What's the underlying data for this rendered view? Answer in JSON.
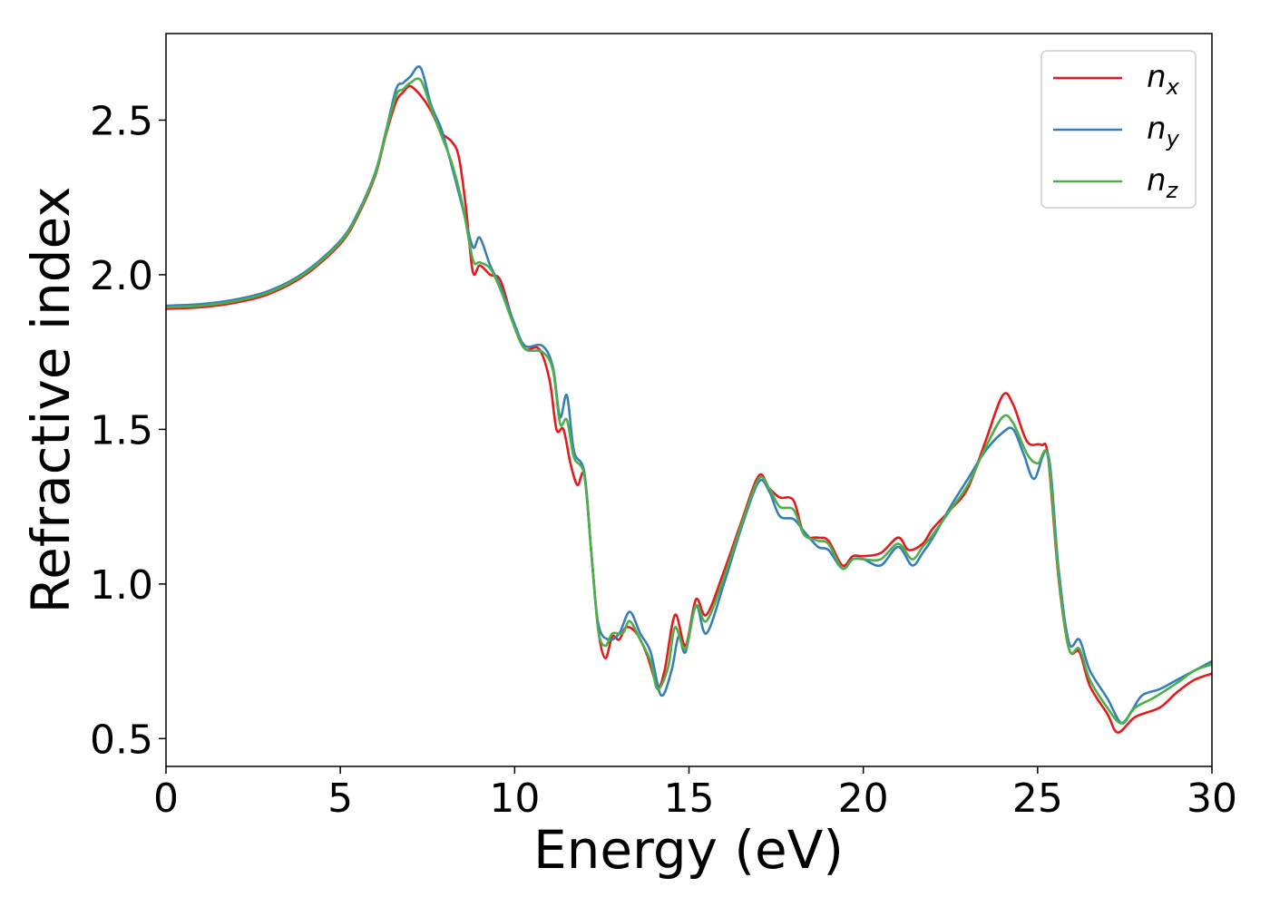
{
  "chart_data": {
    "type": "line",
    "xlabel": "Energy (eV)",
    "ylabel": "Refractive index",
    "xlim": [
      0,
      30
    ],
    "ylim": [
      0.41,
      2.78
    ],
    "xticks": [
      0,
      5,
      10,
      15,
      20,
      25,
      30
    ],
    "xtick_labels": [
      "0",
      "5",
      "10",
      "15",
      "20",
      "25",
      "30"
    ],
    "yticks": [
      0.5,
      1.0,
      1.5,
      2.0,
      2.5
    ],
    "ytick_labels": [
      "0.5",
      "1.0",
      "1.5",
      "2.0",
      "2.5"
    ],
    "grid": false,
    "legend_position": "top-right",
    "series": [
      {
        "name": "n_x",
        "base": "n",
        "sub": "x",
        "color": "#e41a1c",
        "points": [
          [
            0,
            1.89
          ],
          [
            1,
            1.895
          ],
          [
            2,
            1.91
          ],
          [
            3,
            1.94
          ],
          [
            4,
            2.0
          ],
          [
            5,
            2.1
          ],
          [
            5.5,
            2.19
          ],
          [
            6,
            2.32
          ],
          [
            6.3,
            2.45
          ],
          [
            6.6,
            2.56
          ],
          [
            6.8,
            2.59
          ],
          [
            7.0,
            2.61
          ],
          [
            7.3,
            2.58
          ],
          [
            7.6,
            2.53
          ],
          [
            7.9,
            2.46
          ],
          [
            8.2,
            2.43
          ],
          [
            8.4,
            2.38
          ],
          [
            8.6,
            2.22
          ],
          [
            8.8,
            2.01
          ],
          [
            9.0,
            2.03
          ],
          [
            9.3,
            2.0
          ],
          [
            9.6,
            1.98
          ],
          [
            10,
            1.83
          ],
          [
            10.3,
            1.76
          ],
          [
            10.7,
            1.76
          ],
          [
            11,
            1.66
          ],
          [
            11.2,
            1.5
          ],
          [
            11.4,
            1.5
          ],
          [
            11.6,
            1.39
          ],
          [
            11.8,
            1.32
          ],
          [
            12,
            1.35
          ],
          [
            12.2,
            1.1
          ],
          [
            12.4,
            0.85
          ],
          [
            12.6,
            0.76
          ],
          [
            12.8,
            0.83
          ],
          [
            13.0,
            0.82
          ],
          [
            13.2,
            0.86
          ],
          [
            13.5,
            0.84
          ],
          [
            13.8,
            0.77
          ],
          [
            14.1,
            0.67
          ],
          [
            14.3,
            0.72
          ],
          [
            14.6,
            0.9
          ],
          [
            14.9,
            0.8
          ],
          [
            15.2,
            0.95
          ],
          [
            15.5,
            0.9
          ],
          [
            16,
            1.04
          ],
          [
            16.5,
            1.2
          ],
          [
            17,
            1.35
          ],
          [
            17.3,
            1.31
          ],
          [
            17.6,
            1.28
          ],
          [
            18,
            1.27
          ],
          [
            18.3,
            1.16
          ],
          [
            18.7,
            1.15
          ],
          [
            19,
            1.14
          ],
          [
            19.4,
            1.06
          ],
          [
            19.7,
            1.09
          ],
          [
            20,
            1.09
          ],
          [
            20.5,
            1.1
          ],
          [
            21,
            1.15
          ],
          [
            21.3,
            1.11
          ],
          [
            21.7,
            1.13
          ],
          [
            22,
            1.18
          ],
          [
            22.5,
            1.24
          ],
          [
            23,
            1.31
          ],
          [
            23.5,
            1.46
          ],
          [
            24,
            1.61
          ],
          [
            24.3,
            1.58
          ],
          [
            24.7,
            1.46
          ],
          [
            25.1,
            1.45
          ],
          [
            25.3,
            1.41
          ],
          [
            25.6,
            1.02
          ],
          [
            25.9,
            0.79
          ],
          [
            26.2,
            0.78
          ],
          [
            26.5,
            0.67
          ],
          [
            27,
            0.58
          ],
          [
            27.3,
            0.52
          ],
          [
            27.8,
            0.57
          ],
          [
            28.5,
            0.6
          ],
          [
            29,
            0.65
          ],
          [
            29.5,
            0.69
          ],
          [
            30,
            0.71
          ]
        ]
      },
      {
        "name": "n_y",
        "base": "n",
        "sub": "y",
        "color": "#377eb8",
        "points": [
          [
            0,
            1.9
          ],
          [
            1,
            1.905
          ],
          [
            2,
            1.92
          ],
          [
            3,
            1.95
          ],
          [
            4,
            2.01
          ],
          [
            5,
            2.11
          ],
          [
            5.5,
            2.2
          ],
          [
            6,
            2.33
          ],
          [
            6.3,
            2.46
          ],
          [
            6.6,
            2.6
          ],
          [
            6.8,
            2.62
          ],
          [
            7.0,
            2.64
          ],
          [
            7.3,
            2.67
          ],
          [
            7.6,
            2.55
          ],
          [
            7.9,
            2.47
          ],
          [
            8.2,
            2.35
          ],
          [
            8.5,
            2.22
          ],
          [
            8.8,
            2.09
          ],
          [
            9.0,
            2.12
          ],
          [
            9.3,
            2.03
          ],
          [
            9.6,
            1.96
          ],
          [
            10,
            1.84
          ],
          [
            10.3,
            1.77
          ],
          [
            10.8,
            1.77
          ],
          [
            11.1,
            1.7
          ],
          [
            11.3,
            1.54
          ],
          [
            11.5,
            1.61
          ],
          [
            11.7,
            1.43
          ],
          [
            12,
            1.36
          ],
          [
            12.2,
            1.1
          ],
          [
            12.4,
            0.87
          ],
          [
            12.7,
            0.82
          ],
          [
            13.0,
            0.84
          ],
          [
            13.3,
            0.91
          ],
          [
            13.6,
            0.84
          ],
          [
            13.9,
            0.78
          ],
          [
            14.2,
            0.64
          ],
          [
            14.5,
            0.72
          ],
          [
            14.7,
            0.83
          ],
          [
            14.9,
            0.78
          ],
          [
            15.2,
            0.93
          ],
          [
            15.5,
            0.84
          ],
          [
            16,
            1.0
          ],
          [
            16.5,
            1.18
          ],
          [
            17,
            1.33
          ],
          [
            17.3,
            1.3
          ],
          [
            17.6,
            1.22
          ],
          [
            18,
            1.21
          ],
          [
            18.3,
            1.17
          ],
          [
            18.7,
            1.12
          ],
          [
            19,
            1.11
          ],
          [
            19.4,
            1.05
          ],
          [
            19.7,
            1.08
          ],
          [
            20,
            1.08
          ],
          [
            20.5,
            1.06
          ],
          [
            21,
            1.12
          ],
          [
            21.4,
            1.06
          ],
          [
            21.7,
            1.1
          ],
          [
            22,
            1.15
          ],
          [
            22.5,
            1.25
          ],
          [
            23,
            1.34
          ],
          [
            23.5,
            1.43
          ],
          [
            24,
            1.49
          ],
          [
            24.3,
            1.5
          ],
          [
            24.6,
            1.42
          ],
          [
            24.9,
            1.34
          ],
          [
            25.3,
            1.42
          ],
          [
            25.6,
            1.05
          ],
          [
            25.9,
            0.81
          ],
          [
            26.2,
            0.82
          ],
          [
            26.5,
            0.72
          ],
          [
            27,
            0.63
          ],
          [
            27.4,
            0.55
          ],
          [
            27.7,
            0.59
          ],
          [
            28,
            0.64
          ],
          [
            28.5,
            0.66
          ],
          [
            29,
            0.69
          ],
          [
            29.5,
            0.72
          ],
          [
            30,
            0.75
          ]
        ]
      },
      {
        "name": "n_z",
        "base": "n",
        "sub": "z",
        "color": "#4daf4a",
        "points": [
          [
            0,
            1.895
          ],
          [
            1,
            1.9
          ],
          [
            2,
            1.915
          ],
          [
            3,
            1.945
          ],
          [
            4,
            2.005
          ],
          [
            5,
            2.105
          ],
          [
            5.5,
            2.195
          ],
          [
            6,
            2.325
          ],
          [
            6.3,
            2.455
          ],
          [
            6.6,
            2.58
          ],
          [
            6.8,
            2.6
          ],
          [
            7.0,
            2.62
          ],
          [
            7.3,
            2.63
          ],
          [
            7.6,
            2.54
          ],
          [
            7.9,
            2.45
          ],
          [
            8.2,
            2.36
          ],
          [
            8.5,
            2.23
          ],
          [
            8.8,
            2.05
          ],
          [
            9.0,
            2.04
          ],
          [
            9.3,
            2.02
          ],
          [
            9.6,
            1.95
          ],
          [
            10,
            1.83
          ],
          [
            10.3,
            1.76
          ],
          [
            10.8,
            1.75
          ],
          [
            11.1,
            1.69
          ],
          [
            11.3,
            1.52
          ],
          [
            11.5,
            1.53
          ],
          [
            11.7,
            1.41
          ],
          [
            12,
            1.35
          ],
          [
            12.2,
            1.1
          ],
          [
            12.4,
            0.85
          ],
          [
            12.6,
            0.8
          ],
          [
            12.8,
            0.84
          ],
          [
            13.1,
            0.84
          ],
          [
            13.3,
            0.88
          ],
          [
            13.6,
            0.82
          ],
          [
            13.9,
            0.75
          ],
          [
            14.1,
            0.66
          ],
          [
            14.4,
            0.73
          ],
          [
            14.6,
            0.86
          ],
          [
            14.9,
            0.79
          ],
          [
            15.2,
            0.93
          ],
          [
            15.5,
            0.88
          ],
          [
            16,
            1.02
          ],
          [
            16.5,
            1.19
          ],
          [
            17,
            1.34
          ],
          [
            17.3,
            1.31
          ],
          [
            17.6,
            1.25
          ],
          [
            18,
            1.24
          ],
          [
            18.3,
            1.16
          ],
          [
            18.7,
            1.14
          ],
          [
            19,
            1.13
          ],
          [
            19.4,
            1.05
          ],
          [
            19.7,
            1.08
          ],
          [
            20,
            1.08
          ],
          [
            20.5,
            1.08
          ],
          [
            21,
            1.13
          ],
          [
            21.4,
            1.08
          ],
          [
            21.7,
            1.12
          ],
          [
            22,
            1.16
          ],
          [
            22.5,
            1.24
          ],
          [
            23,
            1.32
          ],
          [
            23.5,
            1.44
          ],
          [
            24,
            1.54
          ],
          [
            24.3,
            1.52
          ],
          [
            24.7,
            1.42
          ],
          [
            25.0,
            1.39
          ],
          [
            25.3,
            1.41
          ],
          [
            25.6,
            1.03
          ],
          [
            25.9,
            0.79
          ],
          [
            26.2,
            0.79
          ],
          [
            26.5,
            0.69
          ],
          [
            27,
            0.6
          ],
          [
            27.4,
            0.55
          ],
          [
            27.8,
            0.6
          ],
          [
            28.3,
            0.63
          ],
          [
            29,
            0.68
          ],
          [
            29.5,
            0.72
          ],
          [
            30,
            0.74
          ]
        ]
      }
    ]
  }
}
